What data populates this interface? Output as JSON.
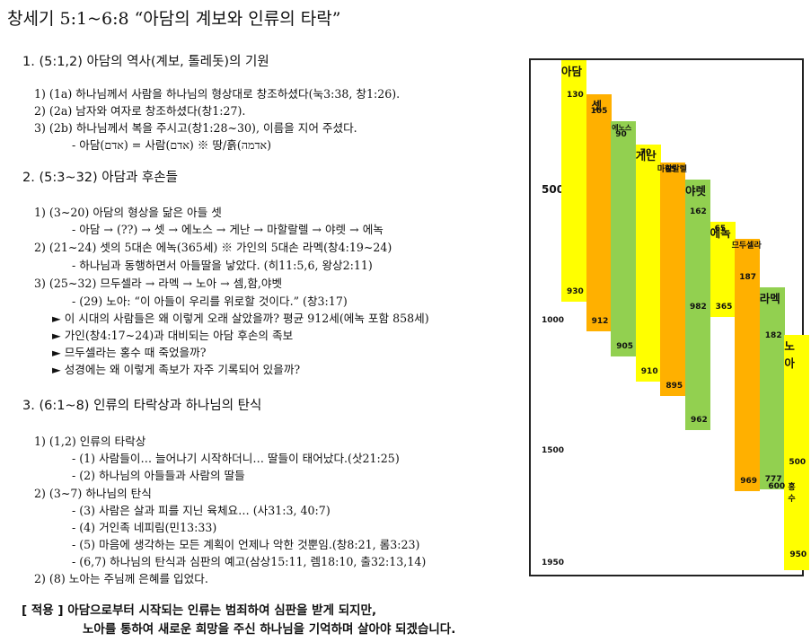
{
  "title": "창세기 5:1~6:8 “아담의 계보와 인류의 타락”",
  "section1": {
    "heading": "1. (5:1,2) 아담의 역사(계보, 톨레돗)의 기원",
    "lines": [
      "1) (1a) 하나님께서 사람을 하나님의 형상대로 창조하셨다(눅3:38, 창1:26).",
      "2) (2a) 남자와 여자로 창조하셨다(창1:27).",
      "3) (2b) 하나님께서 복을 주시고(창1:28~30), 이름을 지어 주셨다.",
      "-   아담(אדם) = 사람(אדם)      ※ 땅/흙(אדמה)"
    ]
  },
  "section2": {
    "heading": "2. (5:3~32) 아담과 후손들",
    "lines": [
      "1) (3~20) 아담의 형상을 닮은 아들 셋",
      "-   아담 → (??)  → 셋  → 에노스  → 게난  → 마할랄렐  → 야렛  → 에녹",
      "2) (21~24) 셋의 5대손 에녹(365세)  ※ 가인의 5대손 라멕(창4:19~24)",
      "-   하나님과 동행하면서 아들딸을 낳았다. (히11:5,6, 왕상2:11)",
      "3) (25~32) 므두셀라  → 라멕  → 노아  → 셈,함,야벳",
      "-   (29) 노아: “이 아들이 우리를 위로할 것이다.” (창3:17)"
    ],
    "bullets": [
      "► 이 시대의 사람들은 왜 이렇게 오래 살았을까? 평균 912세(에녹 포함 858세)",
      "► 가인(창4:17~24)과 대비되는 아담 후손의 족보",
      "► 므두셀라는 홍수 때 죽었을까?",
      "► 성경에는 왜 이렇게 족보가 자주 기록되어 있을까?"
    ]
  },
  "section3": {
    "heading": "3. (6:1~8) 인류의 타락상과 하나님의 탄식",
    "lines": [
      "1) (1,2) 인류의 타락상",
      "-   (1) 사람들이… 늘어나기 시작하더니… 딸들이 태어났다.(삿21:25)",
      "-   (2) 하나님의 아들들과 사람의 딸들",
      "2) (3~7) 하나님의 탄식",
      "-   (3) 사람은 살과 피를 지닌 육체요… (사31:3, 40:7)",
      "-   (4) 거인족 네피림(민13:33)",
      "-   (5) 마음에 생각하는 모든 계획이 언제나 악한 것뿐임.(창8:21, 롬3:23)",
      "-   (6,7) 하나님의 탄식과 심판의 예고(삼상15:11, 렘18:10, 출32:13,14)",
      "2) (8) 노아는 주님께 은혜를 입었다."
    ]
  },
  "application": {
    "line1": "[ 적용 ] 아담으로부터 시작되는 인류는 범죄하여 심판을 받게 되지만,",
    "line2": "노아를 통하여 새로운 희망을 주신 하나님을 기억하며 살아야 되겠습니다."
  },
  "colors": {
    "yellow": "#ffff00",
    "orange": "#ffb000",
    "green": "#92d050",
    "border": "#222222"
  },
  "chart_data": {
    "type": "timeline",
    "y_ticks": [
      "500",
      "1000",
      "1500",
      "1950"
    ],
    "y_tick_values": [
      500,
      1000,
      1500,
      1950
    ],
    "ylim": [
      0,
      1950
    ],
    "bars": [
      {
        "name": "아담",
        "start": 0,
        "end": 930,
        "color": "yellow",
        "top_label": "",
        "end_label": "930",
        "child_label": "130",
        "child_at": 130
      },
      {
        "name": "셋",
        "start": 130,
        "end": 1042,
        "color": "orange",
        "top_label": "",
        "end_label": "912",
        "child_label": "105",
        "child_at": 235
      },
      {
        "name": "에노스",
        "start": 235,
        "end": 1140,
        "color": "green",
        "top_label": "",
        "end_label": "905",
        "child_label": "90",
        "child_at": 325
      },
      {
        "name": "게난",
        "start": 325,
        "end": 1235,
        "color": "yellow",
        "top_label": "",
        "end_label": "910",
        "child_label": "70",
        "child_at": 395
      },
      {
        "name": "마할랄렐",
        "start": 395,
        "end": 1290,
        "color": "orange",
        "top_label": "",
        "end_label": "895",
        "child_label": "65",
        "child_at": 460
      },
      {
        "name": "야렛",
        "start": 460,
        "end": 1422,
        "color": "green",
        "top_label": "",
        "end_label": "962",
        "child_label": "162",
        "child_at": 622
      },
      {
        "name": "에녹",
        "start": 622,
        "end": 987,
        "color": "yellow",
        "top_label": "",
        "end_label": "365",
        "child_label": "65",
        "child_at": 687
      },
      {
        "name": "므두셀라",
        "start": 687,
        "end": 1656,
        "color": "orange",
        "top_label": "",
        "end_label": "969",
        "child_label": "187",
        "child_at": 874
      },
      {
        "name": "라멕",
        "start": 874,
        "end": 1651,
        "color": "green",
        "top_label": "",
        "end_label": "777",
        "child_label": "182",
        "child_at": 1056
      },
      {
        "name": "노아",
        "start": 1056,
        "end": 2006,
        "color": "yellow",
        "top_label": "",
        "end_label": "950",
        "child_label": "",
        "child_at": null
      }
    ],
    "extra_labels": {
      "flood": "홍수",
      "flood_age": "600",
      "noah_500": "500",
      "lamech_982": "982"
    }
  }
}
